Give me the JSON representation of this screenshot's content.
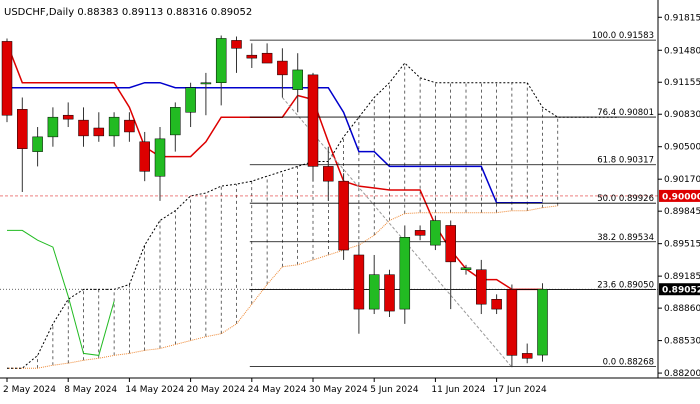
{
  "chart_data": {
    "type": "candlestick",
    "symbol": "USDCHF",
    "timeframe": "Daily",
    "ohlc_label": "0.88383 0.89113 0.88316 0.89052",
    "open": 0.88383,
    "high": 0.89113,
    "low": 0.88316,
    "close": 0.89052,
    "ylim": [
      0.8815,
      0.9195
    ],
    "y_ticks": [
      0.91815,
      0.9148,
      0.91155,
      0.9083,
      0.905,
      0.9017,
      0.89845,
      0.89515,
      0.89185,
      0.8886,
      0.8853,
      0.882
    ],
    "y_tick_labels": [
      "0.91815",
      "0.91480",
      "0.91155",
      "0.90830",
      "0.90500",
      "0.90170",
      "0.89845",
      "0.89515",
      "0.89185",
      "0.88860",
      "0.88530",
      "0.88200"
    ],
    "x_tick_labels": [
      {
        "index": 0,
        "label": "2 May 2024"
      },
      {
        "index": 4,
        "label": "8 May 2024"
      },
      {
        "index": 8,
        "label": "14 May 2024"
      },
      {
        "index": 12,
        "label": "20 May 2024"
      },
      {
        "index": 16,
        "label": "24 May 2024"
      },
      {
        "index": 20,
        "label": "30 May 2024"
      },
      {
        "index": 24,
        "label": "5 Jun 2024"
      },
      {
        "index": 28,
        "label": "11 Jun 2024"
      },
      {
        "index": 32,
        "label": "17 Jun 2024"
      }
    ],
    "candles": [
      {
        "o": 0.9157,
        "h": 0.916,
        "l": 0.9075,
        "c": 0.9082
      },
      {
        "o": 0.9088,
        "h": 0.91,
        "l": 0.9004,
        "c": 0.9048
      },
      {
        "o": 0.9045,
        "h": 0.907,
        "l": 0.903,
        "c": 0.906
      },
      {
        "o": 0.906,
        "h": 0.909,
        "l": 0.905,
        "c": 0.908
      },
      {
        "o": 0.9082,
        "h": 0.9095,
        "l": 0.907,
        "c": 0.9078
      },
      {
        "o": 0.9077,
        "h": 0.909,
        "l": 0.905,
        "c": 0.9061
      },
      {
        "o": 0.9069,
        "h": 0.9085,
        "l": 0.9055,
        "c": 0.9061
      },
      {
        "o": 0.9061,
        "h": 0.9085,
        "l": 0.905,
        "c": 0.908
      },
      {
        "o": 0.9077,
        "h": 0.9085,
        "l": 0.9055,
        "c": 0.9065
      },
      {
        "o": 0.9055,
        "h": 0.9065,
        "l": 0.9015,
        "c": 0.9025
      },
      {
        "o": 0.902,
        "h": 0.907,
        "l": 0.8995,
        "c": 0.9058
      },
      {
        "o": 0.9062,
        "h": 0.9095,
        "l": 0.9045,
        "c": 0.909
      },
      {
        "o": 0.9085,
        "h": 0.9115,
        "l": 0.907,
        "c": 0.911
      },
      {
        "o": 0.9115,
        "h": 0.9125,
        "l": 0.9082,
        "c": 0.9115
      },
      {
        "o": 0.9115,
        "h": 0.9163,
        "l": 0.9092,
        "c": 0.916
      },
      {
        "o": 0.9158,
        "h": 0.9162,
        "l": 0.9125,
        "c": 0.915
      },
      {
        "o": 0.9143,
        "h": 0.9155,
        "l": 0.913,
        "c": 0.914
      },
      {
        "o": 0.9145,
        "h": 0.9155,
        "l": 0.9135,
        "c": 0.9135
      },
      {
        "o": 0.9137,
        "h": 0.915,
        "l": 0.91,
        "c": 0.9123
      },
      {
        "o": 0.9108,
        "h": 0.9145,
        "l": 0.9085,
        "c": 0.9128
      },
      {
        "o": 0.9123,
        "h": 0.9125,
        "l": 0.9015,
        "c": 0.903
      },
      {
        "o": 0.903,
        "h": 0.905,
        "l": 0.8995,
        "c": 0.9015
      },
      {
        "o": 0.9015,
        "h": 0.9023,
        "l": 0.8935,
        "c": 0.8945
      },
      {
        "o": 0.894,
        "h": 0.895,
        "l": 0.886,
        "c": 0.8885
      },
      {
        "o": 0.8885,
        "h": 0.894,
        "l": 0.888,
        "c": 0.892
      },
      {
        "o": 0.892,
        "h": 0.8925,
        "l": 0.8877,
        "c": 0.8883
      },
      {
        "o": 0.8885,
        "h": 0.897,
        "l": 0.887,
        "c": 0.8958
      },
      {
        "o": 0.8965,
        "h": 0.897,
        "l": 0.8955,
        "c": 0.896
      },
      {
        "o": 0.895,
        "h": 0.898,
        "l": 0.8945,
        "c": 0.8975
      },
      {
        "o": 0.897,
        "h": 0.8975,
        "l": 0.8885,
        "c": 0.8933
      },
      {
        "o": 0.8925,
        "h": 0.893,
        "l": 0.892,
        "c": 0.8927
      },
      {
        "o": 0.8925,
        "h": 0.8935,
        "l": 0.888,
        "c": 0.889
      },
      {
        "o": 0.8895,
        "h": 0.89,
        "l": 0.888,
        "c": 0.8885
      },
      {
        "o": 0.8905,
        "h": 0.891,
        "l": 0.8826,
        "c": 0.8838
      },
      {
        "o": 0.884,
        "h": 0.885,
        "l": 0.883,
        "c": 0.8835
      },
      {
        "o": 0.88383,
        "h": 0.89113,
        "l": 0.88316,
        "c": 0.89052
      }
    ],
    "fibonacci": [
      {
        "label": "100.0 0.91583",
        "value": 0.91583
      },
      {
        "label": "76.4 0.90801",
        "value": 0.90801
      },
      {
        "label": "61.8 0.90317",
        "value": 0.90317
      },
      {
        "label": "50.0 0.89926",
        "value": 0.89926
      },
      {
        "label": "38.2 0.89534",
        "value": 0.89534
      },
      {
        "label": "23.6 0.89050",
        "value": 0.8905
      },
      {
        "label": "0.0 0.88268",
        "value": 0.88268
      }
    ],
    "price_markers": [
      {
        "label": "0.90000",
        "value": 0.9,
        "color": "#dd0000",
        "text_color": "#ffffff"
      },
      {
        "label": "0.89052",
        "value": 0.89052,
        "color": "#000000",
        "text_color": "#ffffff"
      }
    ],
    "series": [
      {
        "kind": "tenkan",
        "color": "#dd0000",
        "values": [
          0.9155,
          0.9115,
          0.9115,
          0.9115,
          0.9115,
          0.9115,
          0.9115,
          0.9115,
          0.909,
          0.905,
          0.904,
          0.904,
          0.904,
          0.9055,
          0.908,
          0.908,
          0.908,
          0.908,
          0.908,
          0.9102,
          0.9098,
          0.9055,
          0.9015,
          0.901,
          0.9008,
          0.9006,
          0.9006,
          0.9006,
          0.897,
          0.8945,
          0.8926,
          0.8915,
          0.8915,
          0.8905,
          0.8905,
          0.8905
        ]
      },
      {
        "kind": "kijun",
        "color": "#0000cc",
        "values": [
          0.911,
          0.911,
          0.911,
          0.911,
          0.911,
          0.911,
          0.911,
          0.911,
          0.911,
          0.9115,
          0.9115,
          0.911,
          0.911,
          0.911,
          0.911,
          0.911,
          0.911,
          0.911,
          0.911,
          0.911,
          0.911,
          0.911,
          0.9085,
          0.9045,
          0.9045,
          0.903,
          0.903,
          0.903,
          0.903,
          0.903,
          0.903,
          0.903,
          0.8993,
          0.8993,
          0.8993,
          0.8993
        ]
      },
      {
        "kind": "chikou",
        "color": "#22bb22",
        "values": [
          0.8965,
          0.8965,
          0.8955,
          0.8948,
          0.8898,
          0.884,
          0.8838,
          0.8893
        ]
      },
      {
        "kind": "senkou_a",
        "color": "#ee8833",
        "dash": "1 1",
        "values": [
          0.8825,
          0.8825,
          0.8825,
          0.8828,
          0.883,
          0.8833,
          0.8835,
          0.8838,
          0.884,
          0.8843,
          0.8845,
          0.8849,
          0.8853,
          0.8857,
          0.886,
          0.887,
          0.889,
          0.891,
          0.8928,
          0.893,
          0.8935,
          0.894,
          0.8945,
          0.895,
          0.896,
          0.8975,
          0.8982,
          0.8983,
          0.8983,
          0.8983,
          0.8983,
          0.8983,
          0.8983,
          0.8985,
          0.8985,
          0.8988,
          0.899
        ]
      },
      {
        "kind": "senkou_b",
        "color": "#000000",
        "dash": "2 2",
        "values": [
          0.8825,
          0.8825,
          0.8838,
          0.887,
          0.8895,
          0.8905,
          0.8905,
          0.8905,
          0.891,
          0.895,
          0.8975,
          0.8985,
          0.9,
          0.9003,
          0.901,
          0.9012,
          0.9015,
          0.902,
          0.9025,
          0.903,
          0.9035,
          0.9035,
          0.906,
          0.908,
          0.91,
          0.9115,
          0.9135,
          0.912,
          0.9115,
          0.9115,
          0.9115,
          0.9115,
          0.9115,
          0.9115,
          0.9115,
          0.909,
          0.908,
          0.908,
          0.908,
          0.908,
          0.908
        ]
      },
      {
        "kind": "trend",
        "color": "#999999",
        "dash": "3 2",
        "points": [
          [
            18,
            0.91
          ],
          [
            33,
            0.8826
          ]
        ]
      }
    ]
  }
}
